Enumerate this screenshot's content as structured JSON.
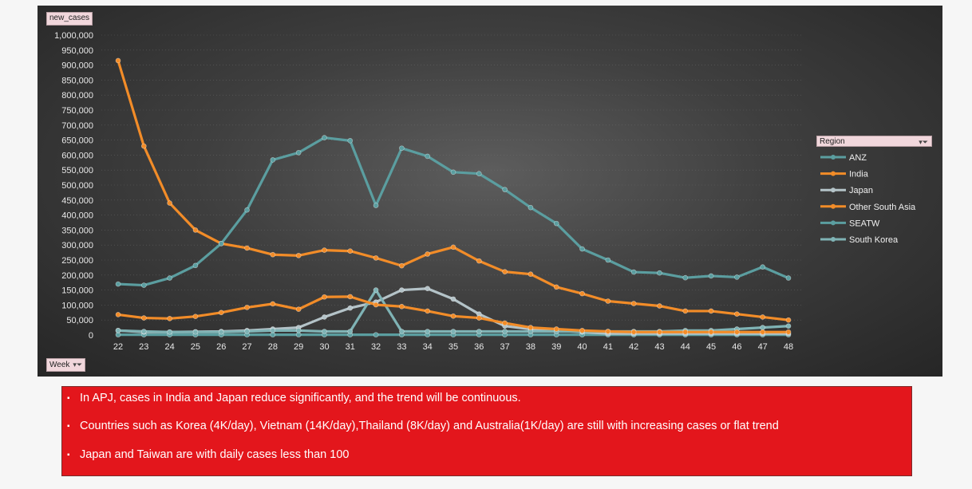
{
  "chart_data": {
    "type": "line",
    "title": "",
    "value_field": "new_cases",
    "axis_field": "Week",
    "legend_title": "Region",
    "xlabel": "Week",
    "ylabel": "new_cases",
    "ylim": [
      0,
      1000000
    ],
    "y_ticks": [
      "0",
      "50,000",
      "100,000",
      "150,000",
      "200,000",
      "250,000",
      "300,000",
      "350,000",
      "400,000",
      "450,000",
      "500,000",
      "550,000",
      "600,000",
      "650,000",
      "700,000",
      "750,000",
      "800,000",
      "850,000",
      "900,000",
      "950,000",
      "1,000,000"
    ],
    "categories": [
      "22",
      "23",
      "24",
      "25",
      "26",
      "27",
      "28",
      "29",
      "30",
      "31",
      "32",
      "33",
      "34",
      "35",
      "36",
      "37",
      "38",
      "39",
      "40",
      "41",
      "42",
      "43",
      "44",
      "45",
      "46",
      "47",
      "48"
    ],
    "series": [
      {
        "name": "ANZ",
        "color": "#5b9ea0",
        "values": [
          1000,
          1000,
          1000,
          1000,
          1000,
          1000,
          1000,
          1000,
          1000,
          1000,
          1000,
          1000,
          1000,
          1000,
          1000,
          1000,
          1000,
          1000,
          1000,
          1000,
          1000,
          1000,
          1000,
          1000,
          1000,
          1000,
          1000
        ]
      },
      {
        "name": "India",
        "color": "#f28c28",
        "values": [
          915000,
          630000,
          440000,
          350000,
          305000,
          290000,
          268000,
          265000,
          283000,
          280000,
          257000,
          231000,
          270000,
          293000,
          247000,
          211000,
          203000,
          160000,
          138000,
          113000,
          105000,
          97000,
          80000,
          80000,
          70000,
          60000,
          50000
        ]
      },
      {
        "name": "Japan",
        "color": "#b4c3c8",
        "values": [
          15000,
          10000,
          10000,
          11000,
          12000,
          15000,
          20000,
          25000,
          60000,
          90000,
          110000,
          150000,
          155000,
          120000,
          70000,
          30000,
          20000,
          15000,
          10000,
          5000,
          5000,
          5000,
          5000,
          5000,
          5000,
          5000,
          5000
        ]
      },
      {
        "name": "Other South Asia",
        "color": "#f28c28",
        "values": [
          68000,
          57000,
          55000,
          62000,
          75000,
          92000,
          104000,
          86000,
          127000,
          128000,
          101000,
          95000,
          80000,
          63000,
          57000,
          40000,
          25000,
          20000,
          15000,
          12000,
          10000,
          10000,
          10000,
          10000,
          10000,
          10000,
          10000
        ]
      },
      {
        "name": "SEATW",
        "color": "#5b9ea0",
        "values": [
          170000,
          166000,
          190000,
          232000,
          305000,
          417000,
          584000,
          608000,
          658000,
          648000,
          432000,
          623000,
          596000,
          543000,
          538000,
          485000,
          425000,
          372000,
          287000,
          250000,
          210000,
          207000,
          191000,
          197000,
          193000,
          227000,
          190000
        ]
      },
      {
        "name": "South Korea",
        "color": "#7fb3b5",
        "values": [
          15000,
          12000,
          10000,
          10000,
          10000,
          12000,
          15000,
          15000,
          12000,
          12000,
          150000,
          12000,
          12000,
          12000,
          12000,
          12000,
          12000,
          12000,
          12000,
          12000,
          12000,
          12000,
          15000,
          15000,
          20000,
          25000,
          30000
        ]
      }
    ]
  },
  "notes": [
    "In APJ, cases in India and Japan reduce significantly, and the trend will be continuous.",
    "Countries such as Korea (4K/day), Vietnam (14K/day),Thailand (8K/day) and Australia(1K/day) are still with increasing cases or flat trend",
    "Japan and Taiwan are with daily cases less than 100"
  ],
  "bullet_glyph": "▪"
}
